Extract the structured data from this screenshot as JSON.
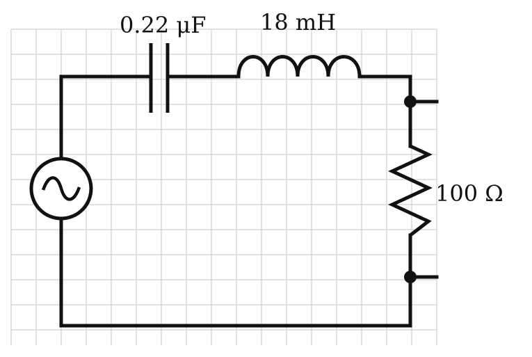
{
  "diagram": {
    "grid": true,
    "components": {
      "capacitor": {
        "label": "0.22 μF"
      },
      "inductor": {
        "label": "18 mH"
      },
      "resistor": {
        "label": "100 Ω"
      },
      "source": {
        "type": "ac-voltage-source"
      }
    },
    "terminals": 2,
    "colors": {
      "grid": "#d9d9d9",
      "wire": "#111111"
    }
  }
}
